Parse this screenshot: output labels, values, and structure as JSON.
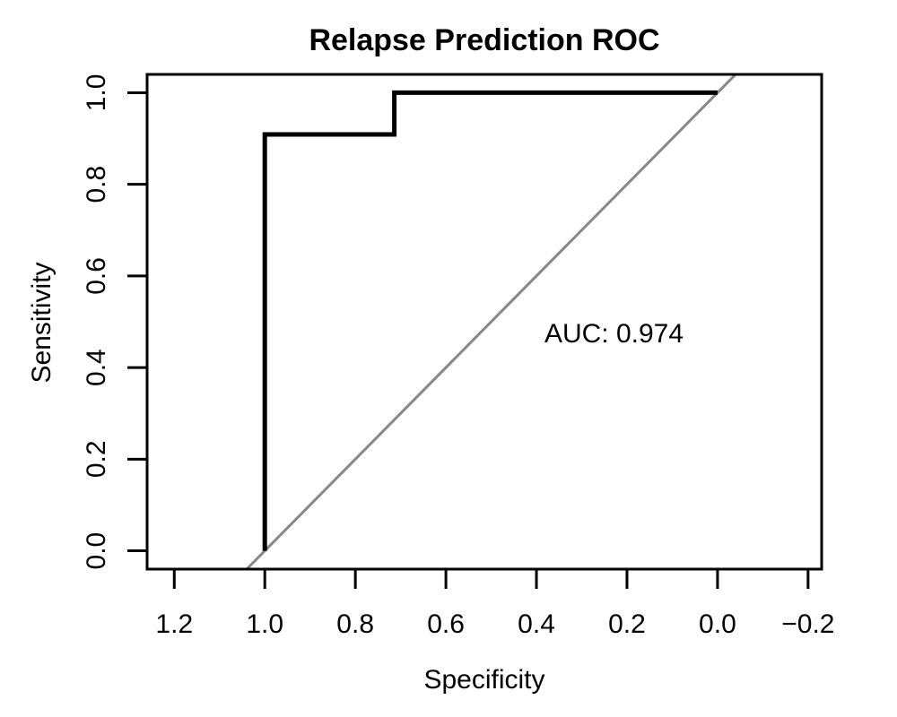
{
  "chart_data": {
    "type": "line",
    "title": "Relapse Prediction ROC",
    "xlabel": "Specificity",
    "ylabel": "Sensitivity",
    "xlim": [
      1.26,
      -0.23
    ],
    "ylim": [
      -0.04,
      1.04
    ],
    "x_reversed": true,
    "x_ticks": [
      1.2,
      1.0,
      0.8,
      0.6,
      0.4,
      0.2,
      0.0,
      -0.2
    ],
    "x_tick_labels": [
      "1.2",
      "1.0",
      "0.8",
      "0.6",
      "0.4",
      "0.2",
      "0.0",
      "−0.2"
    ],
    "y_ticks": [
      0.0,
      0.2,
      0.4,
      0.6,
      0.8,
      1.0
    ],
    "y_tick_labels": [
      "0.0",
      "0.2",
      "0.4",
      "0.6",
      "0.8",
      "1.0"
    ],
    "grid": false,
    "legend": "none",
    "series": [
      {
        "color": "#000000",
        "x": [
          1.0,
          1.0,
          0.714,
          0.714,
          0.0
        ],
        "y": [
          0.0,
          0.909,
          0.909,
          1.0,
          1.0
        ]
      }
    ],
    "reference_line": {
      "color": "#888888",
      "from": [
        1.0,
        0.0
      ],
      "to": [
        0.0,
        1.0
      ]
    },
    "annotation": {
      "text": "AUC: 0.974",
      "x": 0.3,
      "y": 0.475
    }
  }
}
